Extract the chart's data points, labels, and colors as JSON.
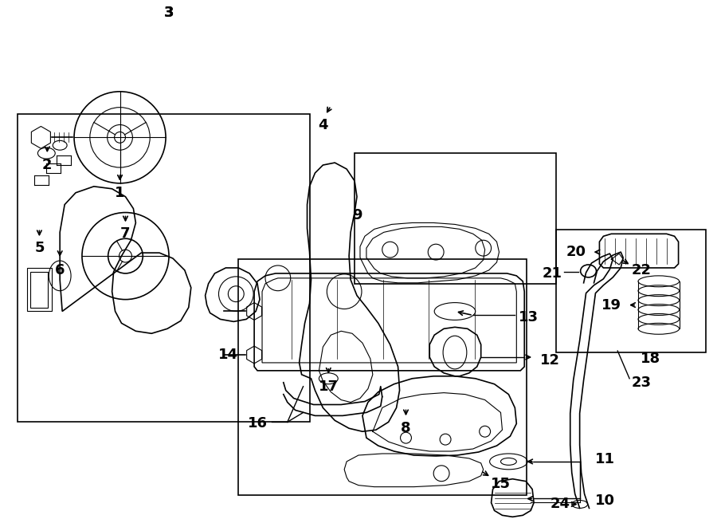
{
  "bg_color": "#ffffff",
  "line_color": "#000000",
  "label_fontsize": 13
}
